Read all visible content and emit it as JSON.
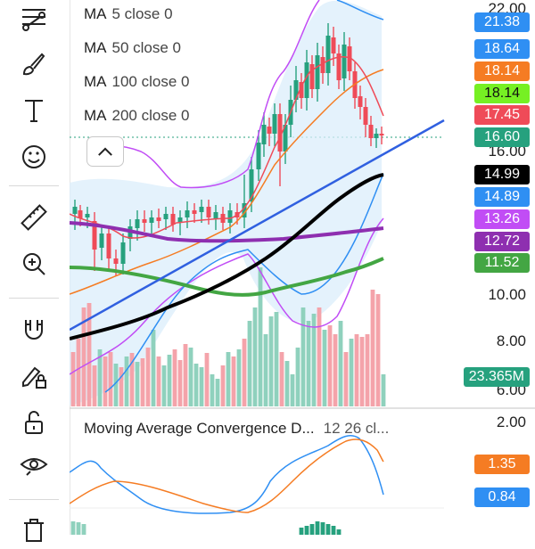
{
  "legend": [
    {
      "name": "MA",
      "params": "5 close 0"
    },
    {
      "name": "MA",
      "params": "50 close 0"
    },
    {
      "name": "MA",
      "params": "100 close 0"
    },
    {
      "name": "MA",
      "params": "200 close 0"
    }
  ],
  "price_axis": [
    "22.00",
    "16.00",
    "10.00",
    "8.00",
    "6.00"
  ],
  "price_tags": [
    {
      "label": "21.38",
      "bg": "#2f8ff3",
      "fg": "#ffffff"
    },
    {
      "label": "18.64",
      "bg": "#2f8ff3",
      "fg": "#ffffff"
    },
    {
      "label": "18.14",
      "bg": "#f57c23",
      "fg": "#ffffff"
    },
    {
      "label": "18.14",
      "bg": "#76f023",
      "fg": "#111111"
    },
    {
      "label": "17.45",
      "bg": "#ef4b58",
      "fg": "#ffffff"
    },
    {
      "label": "16.60",
      "bg": "#26a17e",
      "fg": "#ffffff"
    },
    {
      "label": "14.99",
      "bg": "#000000",
      "fg": "#ffffff"
    },
    {
      "label": "14.89",
      "bg": "#2f8ff3",
      "fg": "#ffffff"
    },
    {
      "label": "13.26",
      "bg": "#c14df5",
      "fg": "#ffffff"
    },
    {
      "label": "12.72",
      "bg": "#8e2fb0",
      "fg": "#ffffff"
    },
    {
      "label": "11.52",
      "bg": "#43a643",
      "fg": "#ffffff"
    },
    {
      "label": "23.365M",
      "bg": "#26a17e",
      "fg": "#ffffff"
    }
  ],
  "macd": {
    "title": "Moving Average Convergence D...",
    "params": "12 26 cl...",
    "axis": [
      "2.00"
    ],
    "tags": [
      {
        "label": "1.35",
        "bg": "#f57c23",
        "fg": "#ffffff"
      },
      {
        "label": "0.84",
        "bg": "#2f8ff3",
        "fg": "#ffffff"
      }
    ]
  },
  "colors": {
    "up": "#26a17e",
    "down": "#ef4b58",
    "vol_up": "#8fd1bd",
    "vol_down": "#f4a3aa",
    "ma5": "#ef4b58",
    "ma50": "#f57c23",
    "ma100": "#000000",
    "ma200": "#8e2fb0",
    "band": "#2f8ff3",
    "bb_outer": "#c14df5",
    "trend": "#3060e0",
    "ma_green": "#43a643"
  },
  "toolbar_icons": [
    "trendline-tools-icon",
    "brush-icon",
    "text-icon",
    "emoji-icon",
    "ruler-icon",
    "zoom-in-icon",
    "magnet-icon",
    "lock-drawing-icon",
    "unlock-icon",
    "eye-icon",
    "trash-icon"
  ]
}
